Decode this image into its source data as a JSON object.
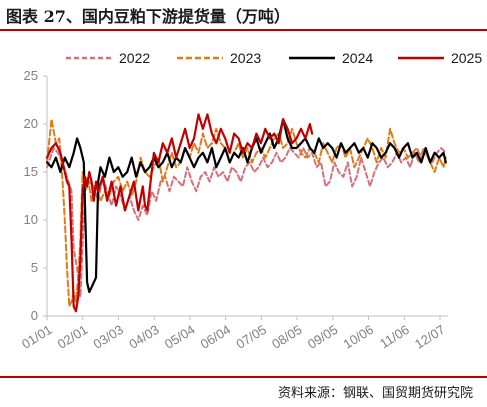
{
  "title": "图表 27、国内豆粕下游提货量（万吨）",
  "source": "资料来源：钢联、国贸期货研究院",
  "chart_data": {
    "type": "line",
    "title": "图表 27、国内豆粕下游提货量（万吨）",
    "xlabel": "",
    "ylabel": "",
    "ylim": [
      0,
      25
    ],
    "yticks": [
      "0",
      "5",
      "10",
      "15",
      "20",
      "25"
    ],
    "xticks": [
      "01/01",
      "02/01",
      "03/03",
      "04/03",
      "05/04",
      "06/04",
      "07/05",
      "08/05",
      "09/05",
      "10/06",
      "11/06",
      "12/07"
    ],
    "grid": false,
    "legend_position": "top",
    "x_domain": [
      0,
      360
    ],
    "series": [
      {
        "name": "2022",
        "color": "#d4717a",
        "dash": "5,3",
        "width": 2,
        "x": [
          0,
          6,
          10,
          14,
          18,
          22,
          24,
          27,
          30,
          34,
          38,
          42,
          46,
          50,
          54,
          58,
          62,
          66,
          70,
          74,
          78,
          82,
          86,
          90,
          94,
          98,
          102,
          106,
          110,
          114,
          118,
          122,
          126,
          130,
          134,
          138,
          142,
          146,
          150,
          154,
          158,
          162,
          166,
          170,
          174,
          178,
          182,
          186,
          190,
          194,
          198,
          202,
          206,
          210,
          214,
          218,
          222,
          226,
          230,
          234,
          238,
          242,
          246,
          250,
          254,
          258,
          262,
          266,
          270,
          274,
          278,
          282,
          286,
          290,
          294,
          298,
          302,
          306,
          310,
          314,
          318,
          322,
          326,
          330,
          334,
          338,
          342,
          346,
          350,
          354,
          358
        ],
        "y": [
          15.5,
          17.5,
          17.0,
          16.0,
          14.5,
          13.0,
          7.0,
          5.0,
          2.0,
          13.0,
          14.0,
          13.5,
          12.0,
          14.5,
          13.0,
          11.5,
          13.5,
          12.5,
          11.0,
          12.5,
          11.0,
          10.0,
          11.5,
          10.5,
          13.0,
          12.0,
          14.0,
          14.5,
          13.0,
          14.5,
          14.0,
          13.5,
          15.5,
          14.0,
          13.0,
          14.5,
          15.0,
          14.0,
          15.5,
          14.5,
          15.0,
          14.0,
          15.5,
          15.0,
          14.0,
          15.5,
          16.0,
          15.0,
          15.5,
          16.5,
          15.5,
          16.0,
          17.0,
          16.0,
          16.5,
          17.5,
          17.0,
          16.5,
          17.5,
          16.5,
          17.0,
          15.5,
          16.0,
          13.5,
          14.0,
          16.0,
          15.0,
          14.5,
          16.0,
          13.5,
          14.5,
          16.5,
          15.0,
          13.5,
          15.0,
          16.0,
          16.5,
          15.5,
          16.0,
          17.0,
          16.0,
          16.5,
          15.5,
          17.0,
          16.0,
          17.5,
          16.5,
          16.0,
          17.0,
          17.5,
          17.0
        ]
      },
      {
        "name": "2023",
        "color": "#e07b1a",
        "dash": "6,3",
        "width": 2,
        "x": [
          0,
          4,
          8,
          11,
          14,
          16,
          18,
          20,
          22,
          24,
          26,
          28,
          30,
          32,
          34,
          36,
          38,
          40,
          44,
          48,
          52,
          56,
          60,
          64,
          68,
          72,
          76,
          80,
          84,
          88,
          92,
          96,
          100,
          104,
          108,
          112,
          116,
          120,
          124,
          128,
          132,
          136,
          140,
          144,
          148,
          152,
          156,
          160,
          164,
          168,
          172,
          176,
          180,
          184,
          188,
          192,
          196,
          200,
          204,
          208,
          212,
          216,
          220,
          224,
          228,
          232,
          236,
          240,
          244,
          248,
          252,
          256,
          260,
          264,
          268,
          272,
          276,
          280,
          284,
          288,
          292,
          296,
          300,
          304,
          308,
          312,
          316,
          320,
          324,
          328,
          332,
          336,
          340,
          344,
          348,
          352,
          356,
          358
        ],
        "y": [
          16.0,
          20.5,
          18.0,
          18.5,
          14.0,
          10.0,
          5.0,
          1.0,
          1.5,
          2.5,
          1.5,
          4.0,
          8.0,
          15.0,
          13.0,
          14.5,
          13.5,
          12.0,
          13.5,
          12.0,
          13.0,
          12.5,
          14.0,
          14.5,
          13.0,
          14.0,
          12.5,
          14.0,
          16.5,
          15.0,
          14.5,
          15.5,
          16.5,
          14.0,
          15.5,
          17.0,
          15.5,
          16.0,
          17.5,
          16.5,
          18.0,
          17.0,
          19.0,
          17.5,
          18.0,
          19.5,
          18.0,
          17.5,
          16.0,
          17.0,
          18.0,
          16.5,
          17.5,
          16.0,
          17.0,
          17.5,
          16.5,
          17.5,
          18.5,
          19.0,
          17.5,
          18.0,
          19.5,
          18.0,
          17.0,
          16.5,
          17.5,
          17.0,
          16.0,
          18.0,
          17.0,
          16.0,
          17.5,
          18.0,
          16.5,
          17.5,
          15.5,
          16.5,
          17.5,
          18.5,
          17.5,
          16.0,
          17.5,
          16.5,
          19.5,
          18.0,
          17.0,
          17.5,
          16.5,
          17.0,
          17.5,
          16.5,
          17.0,
          16.0,
          15.0,
          16.5,
          15.5,
          16.5
        ]
      },
      {
        "name": "2024",
        "color": "#000000",
        "dash": "",
        "width": 2.2,
        "x": [
          0,
          4,
          8,
          12,
          16,
          20,
          24,
          27,
          30,
          33,
          36,
          38,
          40,
          42,
          44,
          46,
          48,
          52,
          56,
          60,
          64,
          68,
          72,
          76,
          80,
          84,
          88,
          92,
          96,
          100,
          104,
          108,
          112,
          116,
          120,
          124,
          128,
          132,
          136,
          140,
          144,
          148,
          152,
          156,
          160,
          164,
          168,
          172,
          176,
          180,
          184,
          188,
          192,
          196,
          200,
          204,
          208,
          212,
          216,
          220,
          224,
          228,
          232,
          236,
          240,
          244,
          248,
          252,
          256,
          260,
          264,
          268,
          272,
          276,
          280,
          284,
          288,
          292,
          296,
          300,
          304,
          308,
          312,
          316,
          320,
          324,
          328,
          332,
          336,
          340,
          344,
          348,
          352,
          356,
          358
        ],
        "y": [
          16.0,
          15.5,
          16.5,
          15.0,
          16.5,
          15.5,
          17.0,
          18.5,
          17.5,
          16.0,
          3.5,
          2.5,
          3.0,
          3.5,
          4.0,
          14.0,
          15.5,
          14.5,
          16.5,
          15.0,
          15.5,
          14.5,
          15.0,
          16.5,
          14.5,
          16.0,
          15.0,
          15.5,
          16.5,
          15.5,
          16.0,
          17.0,
          15.5,
          16.5,
          16.0,
          17.5,
          16.5,
          15.5,
          16.5,
          17.0,
          16.0,
          17.5,
          15.5,
          16.5,
          17.5,
          16.0,
          17.0,
          16.5,
          17.5,
          16.0,
          17.5,
          18.5,
          17.0,
          18.0,
          19.0,
          17.5,
          18.5,
          20.5,
          18.5,
          17.5,
          17.5,
          18.0,
          18.5,
          17.5,
          17.0,
          18.5,
          17.5,
          18.0,
          17.5,
          16.5,
          18.0,
          17.0,
          17.5,
          18.0,
          17.0,
          17.5,
          16.5,
          18.0,
          17.5,
          16.5,
          17.0,
          18.0,
          17.5,
          16.5,
          17.5,
          18.0,
          16.5,
          17.0,
          16.0,
          17.5,
          16.0,
          17.0,
          16.5,
          17.0,
          16.0
        ]
      },
      {
        "name": "2025",
        "color": "#c00000",
        "dash": "",
        "width": 2.2,
        "x": [
          0,
          4,
          8,
          12,
          15,
          18,
          20,
          22,
          24,
          26,
          28,
          30,
          32,
          34,
          36,
          38,
          40,
          42,
          44,
          46,
          50,
          54,
          58,
          62,
          66,
          70,
          74,
          78,
          82,
          86,
          88,
          90,
          92,
          94,
          96,
          100,
          104,
          108,
          112,
          116,
          120,
          124,
          128,
          132,
          136,
          140,
          144,
          148,
          152,
          156,
          160,
          164,
          168,
          172,
          176,
          180,
          184,
          188,
          192,
          196,
          200,
          204,
          208,
          212,
          216,
          220,
          224,
          228,
          232,
          236,
          238
        ],
        "y": [
          16.5,
          17.5,
          18.0,
          17.0,
          15.5,
          14.0,
          13.5,
          8.0,
          1.0,
          0.5,
          2.0,
          6.0,
          13.0,
          14.5,
          13.5,
          15.0,
          14.0,
          12.0,
          14.0,
          13.0,
          14.5,
          12.0,
          14.0,
          11.5,
          13.5,
          11.0,
          12.5,
          14.0,
          11.0,
          13.5,
          11.5,
          11.0,
          13.0,
          15.0,
          17.0,
          16.0,
          18.0,
          17.0,
          18.5,
          16.5,
          18.0,
          19.5,
          17.5,
          18.5,
          21.0,
          19.5,
          21.0,
          19.0,
          18.0,
          19.5,
          18.5,
          17.0,
          19.0,
          18.5,
          17.0,
          18.0,
          17.5,
          19.0,
          18.0,
          19.5,
          18.5,
          19.0,
          18.0,
          20.5,
          19.5,
          18.0,
          18.5,
          19.5,
          18.5,
          20.0,
          19.0
        ]
      }
    ]
  }
}
